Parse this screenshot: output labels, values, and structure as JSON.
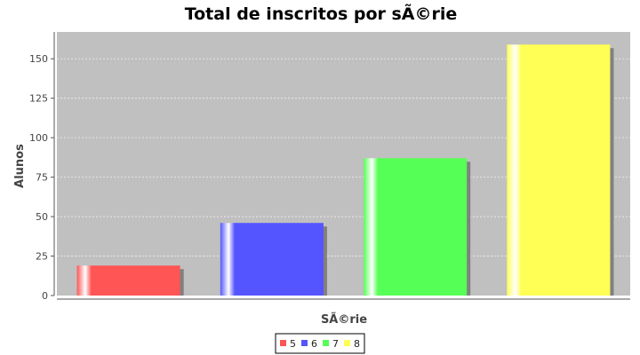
{
  "chart_data": {
    "type": "bar",
    "title": "Total de inscritos por sÃ©rie",
    "xlabel": "SÃ©rie",
    "ylabel": "Alunos",
    "categories": [
      "5",
      "6",
      "7",
      "8"
    ],
    "series": [
      {
        "name": "5",
        "values": [
          19,
          null,
          null,
          null
        ]
      },
      {
        "name": "6",
        "values": [
          null,
          46,
          null,
          null
        ]
      },
      {
        "name": "7",
        "values": [
          null,
          null,
          87,
          null
        ]
      },
      {
        "name": "8",
        "values": [
          null,
          null,
          null,
          159
        ]
      }
    ],
    "values": [
      19,
      46,
      87,
      159
    ],
    "yticks": [
      0,
      25,
      50,
      75,
      100,
      125,
      150
    ],
    "ylim": [
      0,
      167
    ],
    "grid": true,
    "legend_position": "bottom",
    "colors": {
      "plot_background": "#c0c0c0",
      "grid_line": "#f0f0f0",
      "bars": [
        "#ff5555",
        "#5555ff",
        "#55ff55",
        "#ffff55"
      ],
      "shadow": "#808080"
    }
  }
}
